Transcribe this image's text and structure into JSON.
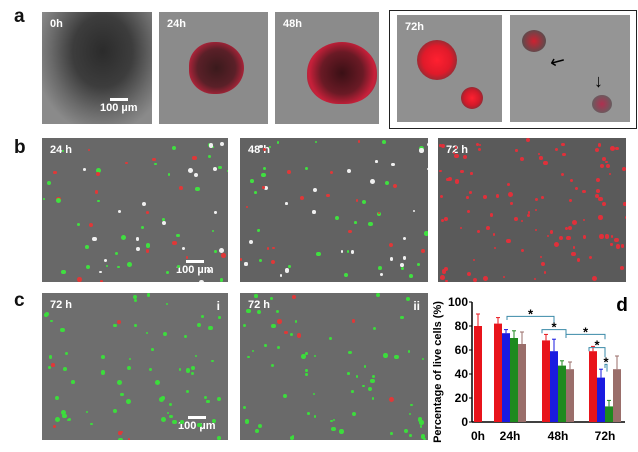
{
  "panel_labels": {
    "a": "a",
    "b": "b",
    "c": "c",
    "d": "d"
  },
  "row_a": {
    "times": [
      "0h",
      "24h",
      "48h",
      "72h"
    ],
    "scale_bar": "100 µm"
  },
  "row_b": {
    "times": [
      "24 h",
      "48 h",
      "72 h"
    ],
    "scale_bar": "100 µm"
  },
  "row_c": {
    "times": [
      "72 h",
      "72 h"
    ],
    "subpanels": [
      "i",
      "ii"
    ],
    "scale_bar": "100 µm"
  },
  "chart_data": {
    "type": "bar",
    "ylabel": "Percentage of live cells (%)",
    "xlabel": "",
    "ylim": [
      0,
      100
    ],
    "yticks": [
      0,
      20,
      40,
      60,
      80,
      100
    ],
    "categories": [
      "0h",
      "24h",
      "48h",
      "72h"
    ],
    "series": [
      {
        "color": "#e8141b",
        "values": [
          80,
          82,
          68,
          59
        ],
        "errors": [
          10,
          5,
          5,
          4
        ]
      },
      {
        "color": "#1a1ae0",
        "values": [
          null,
          74,
          59,
          37
        ],
        "errors": [
          null,
          3,
          10,
          7
        ]
      },
      {
        "color": "#1e8a1e",
        "values": [
          null,
          70,
          47,
          13
        ],
        "errors": [
          null,
          6,
          4,
          5
        ]
      },
      {
        "color": "#9a6e6a",
        "values": [
          null,
          65,
          44,
          44
        ],
        "errors": [
          null,
          10,
          6,
          11
        ]
      }
    ],
    "significance": [
      "*",
      "*",
      "*",
      "*",
      "*"
    ],
    "legend": "none",
    "grid": false
  }
}
